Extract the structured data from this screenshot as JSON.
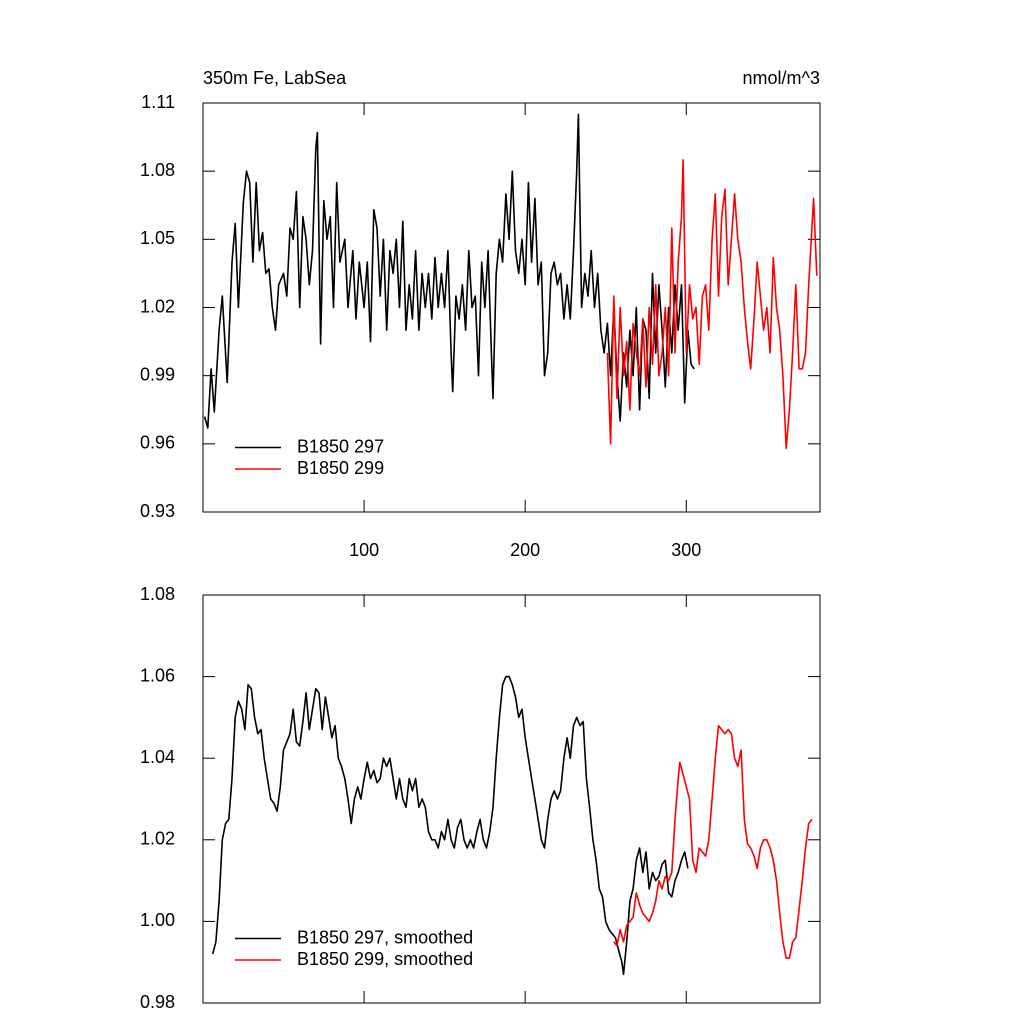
{
  "chart_data": [
    {
      "type": "line",
      "title": "350m Fe, LabSea",
      "subtitle": "nmol/m^3",
      "xlim": [
        0,
        383
      ],
      "xticks": [
        100,
        200,
        300
      ],
      "xtick_labels": true,
      "ylim": [
        0.93,
        1.11
      ],
      "yticks": [
        0.93,
        0.96,
        0.99,
        1.02,
        1.05,
        1.08,
        1.11
      ],
      "legend": "lower left",
      "series": [
        {
          "name": "B1850 297",
          "color": "#000000",
          "x": [
            1,
            3,
            5,
            7,
            10,
            12,
            15,
            18,
            20,
            22,
            25,
            27,
            29,
            31,
            33,
            35,
            37,
            39,
            41,
            43,
            45,
            47,
            50,
            52,
            54,
            56,
            58,
            60,
            62,
            64,
            66,
            68,
            70,
            71,
            73,
            75,
            77,
            79,
            81,
            83,
            85,
            88,
            90,
            93,
            95,
            97,
            100,
            102,
            104,
            106,
            108,
            110,
            112,
            114,
            116,
            118,
            120,
            122,
            124,
            126,
            128,
            130,
            132,
            134,
            136,
            138,
            140,
            142,
            144,
            146,
            148,
            150,
            152,
            154,
            155,
            157,
            159,
            161,
            163,
            165,
            167,
            169,
            171,
            173,
            175,
            177,
            179,
            180,
            182,
            184,
            186,
            188,
            190,
            192,
            194,
            196,
            198,
            200,
            202,
            204,
            206,
            208,
            210,
            212,
            214,
            216,
            218,
            220,
            222,
            224,
            226,
            228,
            230,
            232,
            233,
            235,
            237,
            239,
            241,
            243,
            245,
            247,
            249,
            251,
            253,
            255,
            257,
            259,
            261,
            263,
            265,
            267,
            269,
            271,
            273,
            275,
            277,
            279,
            281,
            283,
            285,
            287,
            289,
            291,
            293,
            295,
            297,
            299,
            301,
            303,
            305
          ],
          "values": [
            0.972,
            0.967,
            0.993,
            0.974,
            1.01,
            1.025,
            0.987,
            1.04,
            1.057,
            1.02,
            1.066,
            1.08,
            1.075,
            1.04,
            1.075,
            1.045,
            1.053,
            1.035,
            1.037,
            1.02,
            1.01,
            1.03,
            1.035,
            1.025,
            1.055,
            1.05,
            1.071,
            1.02,
            1.06,
            1.05,
            1.03,
            1.045,
            1.09,
            1.097,
            1.004,
            1.067,
            1.05,
            1.06,
            1.02,
            1.075,
            1.04,
            1.05,
            1.02,
            1.045,
            1.015,
            1.04,
            1.02,
            1.04,
            1.005,
            1.063,
            1.055,
            1.025,
            1.05,
            1.01,
            1.045,
            1.035,
            1.05,
            1.02,
            1.058,
            1.01,
            1.03,
            1.015,
            1.045,
            1.01,
            1.035,
            1.02,
            1.035,
            1.015,
            1.042,
            1.02,
            1.035,
            1.02,
            1.045,
            1.0,
            0.983,
            1.025,
            1.015,
            1.03,
            1.01,
            1.045,
            1.02,
            1.025,
            0.99,
            1.04,
            1.02,
            1.045,
            1.0,
            0.98,
            1.035,
            1.05,
            1.04,
            1.07,
            1.05,
            1.08,
            1.045,
            1.035,
            1.05,
            1.03,
            1.075,
            1.04,
            1.068,
            1.03,
            1.04,
            0.99,
            1.0,
            1.035,
            1.04,
            1.03,
            1.035,
            1.015,
            1.03,
            1.015,
            1.045,
            1.08,
            1.105,
            1.02,
            1.035,
            1.025,
            1.045,
            1.02,
            1.035,
            1.01,
            1.0,
            1.013,
            0.99,
            1.02,
            0.99,
            0.97,
            1.0,
            0.985,
            1.01,
            0.99,
            1.02,
            0.975,
            1.015,
            1.01,
            0.98,
            1.035,
            1.0,
            1.03,
            1.01,
            0.985,
            1.02,
            1.0,
            1.03,
            1.01,
            1.03,
            0.978,
            1.01,
            0.995,
            0.993
          ]
        },
        {
          "name": "B1850 299",
          "color": "#ff0000",
          "x": [
            251,
            253,
            255,
            257,
            259,
            261,
            263,
            265,
            267,
            269,
            271,
            273,
            275,
            277,
            279,
            281,
            283,
            285,
            287,
            289,
            291,
            293,
            295,
            297,
            298,
            300,
            302,
            304,
            306,
            308,
            310,
            312,
            314,
            316,
            318,
            320,
            322,
            324,
            326,
            328,
            330,
            332,
            334,
            336,
            338,
            340,
            342,
            344,
            346,
            348,
            350,
            352,
            354,
            356,
            358,
            360,
            362,
            364,
            366,
            368,
            370,
            372,
            374,
            376,
            379,
            381
          ],
          "values": [
            1.0,
            0.96,
            1.025,
            0.98,
            1.02,
            0.99,
            1.005,
            0.975,
            1.013,
            1.0,
            0.99,
            1.015,
            0.985,
            1.02,
            0.995,
            1.03,
            0.99,
            1.0,
            1.02,
            0.99,
            1.055,
            1.0,
            1.04,
            1.06,
            1.085,
            1.0,
            1.03,
            1.015,
            1.02,
            0.995,
            1.025,
            1.03,
            1.01,
            1.05,
            1.07,
            1.025,
            1.06,
            1.072,
            1.03,
            1.05,
            1.07,
            1.05,
            1.04,
            1.02,
            1.005,
            0.993,
            1.015,
            1.04,
            1.025,
            1.01,
            1.02,
            1.0,
            1.042,
            1.02,
            1.01,
            0.99,
            0.958,
            0.975,
            1.0,
            1.03,
            0.993,
            0.993,
            1.0,
            1.03,
            1.068,
            1.034
          ]
        }
      ]
    },
    {
      "type": "line",
      "xlim": [
        0,
        383
      ],
      "xticks": [
        100,
        200,
        300
      ],
      "xtick_labels": false,
      "ylim": [
        0.98,
        1.08
      ],
      "yticks": [
        0.98,
        {
          "value": 1,
          "label": "1.00"
        },
        1.02,
        1.04,
        1.06,
        1.08
      ],
      "legend": "lower left",
      "series": [
        {
          "name": "B1850 297, smoothed",
          "color": "#000000",
          "x": [
            6,
            8,
            10,
            12,
            14,
            16,
            18,
            20,
            22,
            24,
            26,
            28,
            30,
            32,
            34,
            36,
            38,
            40,
            42,
            44,
            46,
            48,
            50,
            52,
            54,
            56,
            58,
            60,
            62,
            64,
            66,
            68,
            70,
            72,
            74,
            76,
            78,
            80,
            82,
            84,
            86,
            88,
            90,
            92,
            94,
            96,
            98,
            100,
            102,
            104,
            106,
            108,
            110,
            112,
            114,
            116,
            118,
            120,
            122,
            124,
            126,
            128,
            130,
            132,
            134,
            136,
            138,
            140,
            142,
            144,
            146,
            148,
            150,
            152,
            154,
            156,
            158,
            160,
            162,
            164,
            166,
            168,
            170,
            172,
            174,
            176,
            178,
            180,
            182,
            184,
            186,
            188,
            190,
            192,
            194,
            196,
            198,
            200,
            202,
            204,
            206,
            208,
            210,
            212,
            214,
            216,
            218,
            220,
            222,
            224,
            226,
            228,
            230,
            232,
            234,
            236,
            238,
            240,
            242,
            244,
            246,
            248,
            250,
            252,
            254,
            256,
            258,
            260,
            261,
            263,
            265,
            267,
            269,
            271,
            273,
            275,
            277,
            279,
            281,
            283,
            285,
            287,
            289,
            291,
            293,
            295,
            297,
            299,
            301
          ],
          "values": [
            0.992,
            0.995,
            1.005,
            1.02,
            1.024,
            1.025,
            1.035,
            1.05,
            1.054,
            1.052,
            1.047,
            1.058,
            1.057,
            1.05,
            1.046,
            1.047,
            1.04,
            1.035,
            1.03,
            1.029,
            1.027,
            1.033,
            1.042,
            1.044,
            1.046,
            1.052,
            1.044,
            1.043,
            1.049,
            1.056,
            1.047,
            1.052,
            1.057,
            1.056,
            1.047,
            1.055,
            1.05,
            1.045,
            1.048,
            1.04,
            1.038,
            1.035,
            1.03,
            1.024,
            1.03,
            1.033,
            1.03,
            1.035,
            1.039,
            1.035,
            1.037,
            1.034,
            1.035,
            1.04,
            1.038,
            1.04,
            1.035,
            1.03,
            1.035,
            1.03,
            1.028,
            1.035,
            1.032,
            1.035,
            1.028,
            1.03,
            1.028,
            1.022,
            1.02,
            1.02,
            1.018,
            1.022,
            1.02,
            1.025,
            1.02,
            1.018,
            1.023,
            1.025,
            1.02,
            1.018,
            1.02,
            1.018,
            1.022,
            1.025,
            1.02,
            1.018,
            1.022,
            1.028,
            1.04,
            1.05,
            1.058,
            1.06,
            1.06,
            1.058,
            1.055,
            1.05,
            1.052,
            1.045,
            1.04,
            1.035,
            1.03,
            1.025,
            1.02,
            1.018,
            1.025,
            1.03,
            1.032,
            1.03,
            1.032,
            1.04,
            1.045,
            1.04,
            1.048,
            1.05,
            1.048,
            1.049,
            1.035,
            1.028,
            1.02,
            1.015,
            1.008,
            1.006,
            1.0,
            0.998,
            0.997,
            0.996,
            0.993,
            0.99,
            0.987,
            0.995,
            1.005,
            1.008,
            1.015,
            1.018,
            1.012,
            1.017,
            1.008,
            1.012,
            1.01,
            1.011,
            1.014,
            1.015,
            1.007,
            1.006,
            1.01,
            1.012,
            1.015,
            1.017,
            1.013
          ]
        },
        {
          "name": "B1850 299, smoothed",
          "color": "#ff0000",
          "x": [
            255,
            257,
            259,
            261,
            263,
            265,
            267,
            269,
            271,
            273,
            275,
            277,
            279,
            281,
            283,
            285,
            287,
            289,
            291,
            293,
            295,
            296,
            298,
            300,
            302,
            304,
            306,
            308,
            310,
            312,
            314,
            316,
            318,
            320,
            322,
            324,
            326,
            328,
            330,
            332,
            334,
            336,
            338,
            340,
            342,
            344,
            346,
            348,
            350,
            352,
            354,
            356,
            358,
            360,
            362,
            364,
            366,
            368,
            370,
            372,
            374,
            376,
            378
          ],
          "values": [
            0.995,
            0.994,
            0.998,
            0.995,
            0.999,
            1.0,
            1.001,
            1.007,
            1.004,
            1.002,
            1.001,
            1.0,
            1.002,
            1.005,
            1.01,
            1.008,
            1.011,
            1.01,
            1.012,
            1.025,
            1.035,
            1.039,
            1.036,
            1.033,
            1.03,
            1.015,
            1.012,
            1.018,
            1.017,
            1.016,
            1.02,
            1.03,
            1.04,
            1.048,
            1.047,
            1.046,
            1.047,
            1.046,
            1.04,
            1.038,
            1.042,
            1.025,
            1.019,
            1.018,
            1.016,
            1.013,
            1.018,
            1.02,
            1.02,
            1.018,
            1.015,
            1.01,
            1.002,
            0.995,
            0.991,
            0.991,
            0.995,
            0.996,
            1.003,
            1.01,
            1.018,
            1.024,
            1.025
          ]
        }
      ]
    }
  ]
}
